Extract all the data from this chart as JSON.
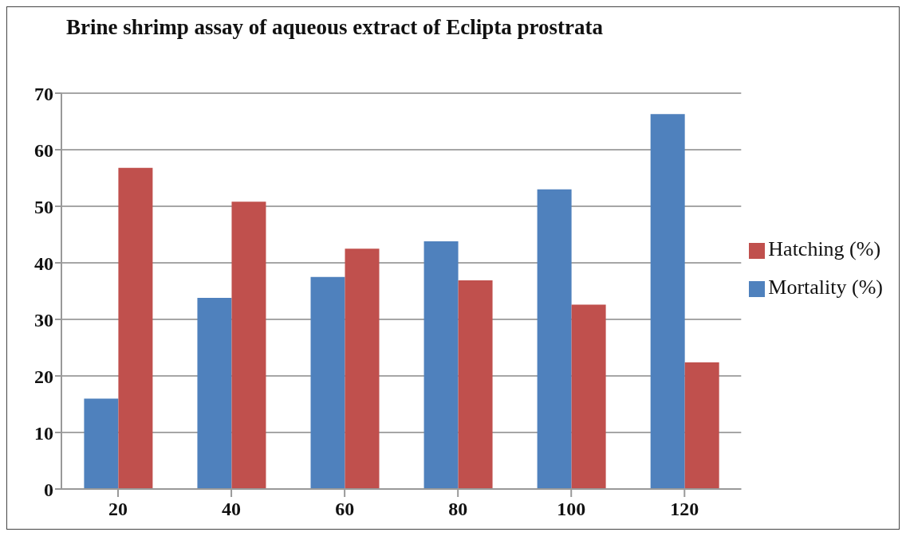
{
  "chart_data": {
    "type": "bar",
    "title": "Brine shrimp assay of aqueous extract of Eclipta prostrata",
    "categories": [
      "20",
      "40",
      "60",
      "80",
      "100",
      "120"
    ],
    "series": [
      {
        "name": "Mortality (%)",
        "color": "#4f81bd",
        "values": [
          16,
          33.8,
          37.5,
          43.8,
          53,
          66.3
        ]
      },
      {
        "name": "Hatching (%)",
        "color": "#c0504d",
        "values": [
          56.8,
          50.8,
          42.5,
          36.9,
          32.6,
          22.4
        ]
      }
    ],
    "ylim": [
      0,
      70
    ],
    "yticks": [
      0,
      10,
      20,
      30,
      40,
      50,
      60,
      70
    ],
    "grid": "y",
    "legend": "right"
  }
}
